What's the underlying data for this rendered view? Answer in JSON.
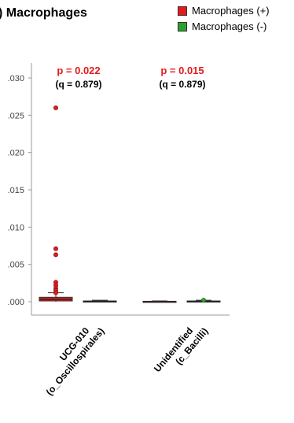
{
  "title": ") Macrophages",
  "legend": [
    {
      "label": "Macrophages (+)",
      "color": "#e41a1c"
    },
    {
      "label": "Macrophages (-)",
      "color": "#2ca02c"
    }
  ],
  "chart_data": {
    "type": "box",
    "title": ") Macrophages",
    "ylim": [
      -0.001,
      0.0315
    ],
    "yticks": [
      ".000",
      ".005",
      ".010",
      ".015",
      ".020",
      ".025",
      ".030"
    ],
    "ytick_values": [
      0.0,
      0.005,
      0.01,
      0.015,
      0.02,
      0.025,
      0.03
    ],
    "categories": [
      {
        "label_line1": "UCG-010",
        "label_line2": "(o_Oscillospirales)",
        "p_text": "p = 0.022",
        "q_text": "(q = 0.879)",
        "groups": [
          {
            "series": "Macrophages (+)",
            "color": "#e41a1c",
            "q1": 0.0001,
            "median": 0.0003,
            "q3": 0.0006,
            "whisker_low": 0.0,
            "whisker_high": 0.0012,
            "outliers": [
              0.026,
              0.0071,
              0.0063,
              0.0026,
              0.0022,
              0.0018,
              0.0015,
              0.0012
            ]
          },
          {
            "series": "Macrophages (-)",
            "color": "#2ca02c",
            "q1": 0.0,
            "median": 5e-05,
            "q3": 0.0001,
            "whisker_low": 0.0,
            "whisker_high": 0.0002,
            "outliers": []
          }
        ]
      },
      {
        "label_line1": "Unidentified",
        "label_line2": "(c_Bacilli)",
        "p_text": "p = 0.015",
        "q_text": "(q = 0.879)",
        "groups": [
          {
            "series": "Macrophages (+)",
            "color": "#e41a1c",
            "q1": 0.0,
            "median": 3e-05,
            "q3": 6e-05,
            "whisker_low": 0.0,
            "whisker_high": 0.0001,
            "outliers": []
          },
          {
            "series": "Macrophages (-)",
            "color": "#2ca02c",
            "q1": 0.0,
            "median": 5e-05,
            "q3": 0.0001,
            "whisker_low": 0.0,
            "whisker_high": 0.0002,
            "outliers": [
              0.0002
            ]
          }
        ]
      }
    ]
  }
}
